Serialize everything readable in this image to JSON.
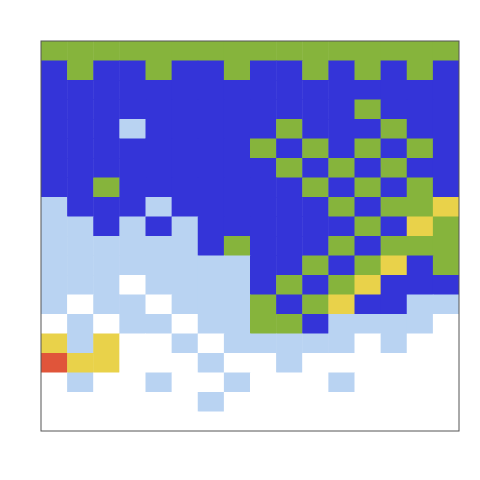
{
  "chart_data": {
    "type": "heatmap",
    "tick_labels": false,
    "zlim": [
      0,
      5
    ],
    "cells": [
      [
        3,
        3,
        3,
        3,
        3,
        3,
        3,
        3,
        3,
        3,
        3,
        3,
        3,
        3,
        3,
        3
      ],
      [
        2,
        3,
        2,
        2,
        3,
        2,
        2,
        3,
        2,
        2,
        3,
        2,
        3,
        2,
        3,
        2
      ],
      [
        2,
        2,
        2,
        2,
        2,
        2,
        2,
        2,
        2,
        2,
        2,
        2,
        2,
        2,
        2,
        2
      ],
      [
        2,
        2,
        2,
        2,
        2,
        2,
        2,
        2,
        2,
        2,
        2,
        2,
        3,
        2,
        2,
        2
      ],
      [
        2,
        2,
        2,
        1,
        2,
        2,
        2,
        2,
        2,
        3,
        2,
        2,
        2,
        3,
        2,
        2
      ],
      [
        2,
        2,
        2,
        2,
        2,
        2,
        2,
        2,
        3,
        2,
        3,
        2,
        3,
        2,
        3,
        2
      ],
      [
        2,
        2,
        2,
        2,
        2,
        2,
        2,
        2,
        2,
        3,
        2,
        3,
        2,
        3,
        2,
        2
      ],
      [
        2,
        2,
        3,
        2,
        2,
        2,
        2,
        2,
        2,
        2,
        3,
        2,
        3,
        2,
        3,
        2
      ],
      [
        1,
        2,
        2,
        2,
        1,
        2,
        2,
        2,
        2,
        2,
        2,
        3,
        2,
        3,
        3,
        4
      ],
      [
        1,
        1,
        2,
        1,
        2,
        1,
        2,
        2,
        2,
        2,
        2,
        2,
        3,
        2,
        4,
        3
      ],
      [
        1,
        1,
        1,
        1,
        1,
        1,
        2,
        3,
        2,
        2,
        2,
        3,
        2,
        3,
        3,
        3
      ],
      [
        1,
        1,
        1,
        1,
        1,
        1,
        1,
        1,
        2,
        2,
        3,
        2,
        3,
        4,
        2,
        3
      ],
      [
        1,
        1,
        1,
        0,
        1,
        1,
        1,
        1,
        2,
        3,
        2,
        3,
        4,
        2,
        2,
        2
      ],
      [
        1,
        0,
        1,
        1,
        0,
        1,
        1,
        1,
        3,
        2,
        3,
        4,
        2,
        2,
        1,
        1
      ],
      [
        0,
        1,
        0,
        1,
        1,
        0,
        1,
        1,
        3,
        3,
        2,
        1,
        1,
        1,
        1,
        0
      ],
      [
        4,
        1,
        4,
        0,
        0,
        1,
        0,
        1,
        1,
        1,
        1,
        1,
        0,
        1,
        0,
        0
      ],
      [
        5,
        4,
        4,
        0,
        0,
        0,
        1,
        0,
        0,
        1,
        0,
        0,
        0,
        0,
        0,
        0
      ],
      [
        0,
        1,
        0,
        0,
        1,
        0,
        0,
        1,
        0,
        0,
        0,
        1,
        0,
        0,
        0,
        0
      ],
      [
        0,
        0,
        0,
        0,
        0,
        0,
        1,
        0,
        0,
        0,
        0,
        0,
        0,
        0,
        0,
        0
      ],
      [
        0,
        0,
        0,
        0,
        0,
        0,
        0,
        0,
        0,
        0,
        0,
        0,
        0,
        0,
        0,
        0
      ]
    ]
  }
}
